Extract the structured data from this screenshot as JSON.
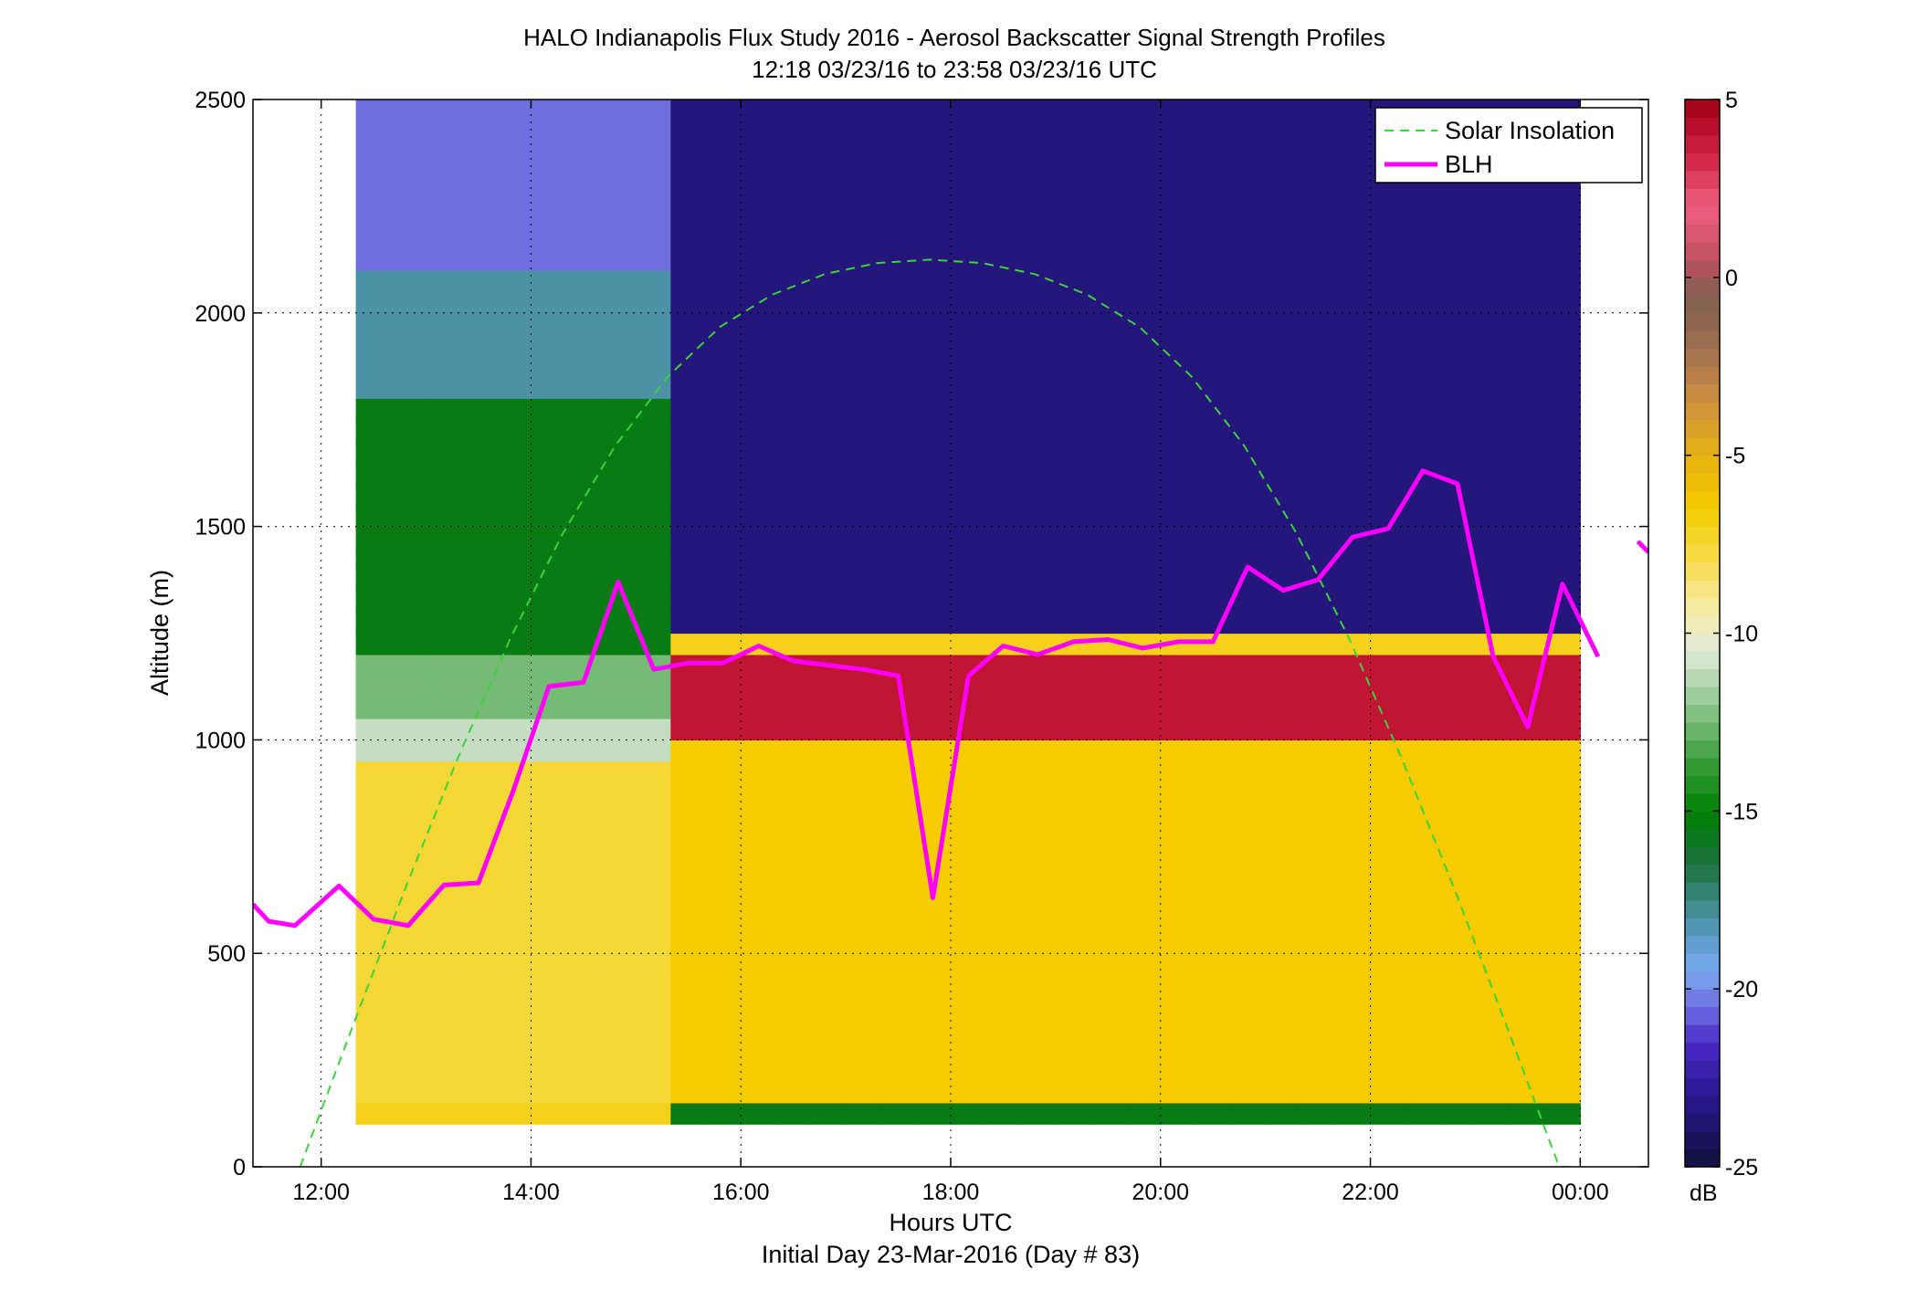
{
  "chart_data": {
    "type": "heatmap",
    "title": "HALO Indianapolis Flux Study 2016 - Aerosol Backscatter Signal Strength Profiles",
    "subtitle": "12:18 03/23/16 to 23:58 03/23/16  UTC",
    "xlabel": "Hours UTC",
    "xlabel2": "Initial Day 23-Mar-2016 (Day # 83)",
    "ylabel": "Altitude (m)",
    "xlim": [
      11.35,
      24.65
    ],
    "ylim": [
      0,
      2500
    ],
    "grid": true,
    "legend_position": "top-right",
    "x_ticks": [
      {
        "value": 12,
        "label": "12:00"
      },
      {
        "value": 14,
        "label": "14:00"
      },
      {
        "value": 16,
        "label": "16:00"
      },
      {
        "value": 18,
        "label": "18:00"
      },
      {
        "value": 20,
        "label": "20:00"
      },
      {
        "value": 22,
        "label": "22:00"
      },
      {
        "value": 24,
        "label": "00:00"
      }
    ],
    "y_ticks": [
      {
        "value": 0,
        "label": "0"
      },
      {
        "value": 500,
        "label": "500"
      },
      {
        "value": 1000,
        "label": "1000"
      },
      {
        "value": 1500,
        "label": "1500"
      },
      {
        "value": 2000,
        "label": "2000"
      },
      {
        "value": 2500,
        "label": "2500"
      }
    ],
    "colorbar": {
      "label": "dB",
      "range": [
        -25,
        5
      ],
      "ticks": [
        {
          "value": 5,
          "label": "5"
        },
        {
          "value": 0,
          "label": "0"
        },
        {
          "value": -5,
          "label": "-5"
        },
        {
          "value": -10,
          "label": "-10"
        },
        {
          "value": -15,
          "label": "-15"
        },
        {
          "value": -20,
          "label": "-20"
        },
        {
          "value": -25,
          "label": "-25"
        }
      ],
      "stops": [
        {
          "v": -25,
          "color": "#10103a"
        },
        {
          "v": -23,
          "color": "#2a1890"
        },
        {
          "v": -21.5,
          "color": "#4a2ac8"
        },
        {
          "v": -20.5,
          "color": "#6f6ee0"
        },
        {
          "v": -19.5,
          "color": "#7aa8ee"
        },
        {
          "v": -18.5,
          "color": "#5a9ac8"
        },
        {
          "v": -17.5,
          "color": "#3a8a80"
        },
        {
          "v": -16.5,
          "color": "#1a7040"
        },
        {
          "v": -15,
          "color": "#008000"
        },
        {
          "v": -13.5,
          "color": "#40a040"
        },
        {
          "v": -12,
          "color": "#90c890"
        },
        {
          "v": -10.5,
          "color": "#e0e8d8"
        },
        {
          "v": -9.5,
          "color": "#f5eeb0"
        },
        {
          "v": -8,
          "color": "#f6dc50"
        },
        {
          "v": -6.5,
          "color": "#f4cc00"
        },
        {
          "v": -5,
          "color": "#e8b010"
        },
        {
          "v": -3.5,
          "color": "#d09040"
        },
        {
          "v": -2,
          "color": "#a07050"
        },
        {
          "v": -0.5,
          "color": "#806050"
        },
        {
          "v": 0.5,
          "color": "#c05060"
        },
        {
          "v": 2,
          "color": "#f06080"
        },
        {
          "v": 3.5,
          "color": "#d02040"
        },
        {
          "v": 5,
          "color": "#a00018"
        }
      ]
    },
    "heatmap": {
      "x_start": 12.33,
      "x_end": 24.0,
      "x_bins": 35,
      "y_start": 100,
      "y_end": 2500,
      "y_bin": 50,
      "segments": [
        {
          "x_from": 12.33,
          "x_to": 15.2,
          "layers": [
            {
              "from": 100,
              "to": 150,
              "value": -7
            },
            {
              "from": 150,
              "to": 950,
              "value": -7.5
            },
            {
              "from": 950,
              "to": 1050,
              "value": -11
            },
            {
              "from": 1050,
              "to": 1200,
              "value": -12.5
            },
            {
              "from": 1200,
              "to": 1800,
              "value": -15.5
            },
            {
              "from": 1800,
              "to": 2100,
              "value": -18
            },
            {
              "from": 2100,
              "to": 2500,
              "value": -20.5
            }
          ]
        },
        {
          "x_from": 15.2,
          "x_to": 24.0,
          "layers": [
            {
              "from": 100,
              "to": 150,
              "value": -15.5
            },
            {
              "from": 150,
              "to": 1000,
              "value": -6.5
            },
            {
              "from": 1000,
              "to": 1200,
              "value": 4
            },
            {
              "from": 1200,
              "to": 1250,
              "value": -7
            },
            {
              "from": 1250,
              "to": 2500,
              "value": -23.5
            }
          ]
        }
      ]
    },
    "series": [
      {
        "name": "Solar Insolation",
        "style": "dashed",
        "color": "#3cd23c",
        "x": [
          11.8,
          12.3,
          12.8,
          13.3,
          13.8,
          14.3,
          14.8,
          15.3,
          15.8,
          16.3,
          16.8,
          17.3,
          17.8,
          18.3,
          18.8,
          19.3,
          19.8,
          20.3,
          20.8,
          21.3,
          21.8,
          22.3,
          22.8,
          23.3,
          23.8,
          23.9
        ],
        "y": [
          0,
          329,
          651,
          956,
          1236,
          1482,
          1688,
          1850,
          1967,
          2043,
          2091,
          2117,
          2125,
          2117,
          2091,
          2043,
          1967,
          1850,
          1688,
          1482,
          1236,
          956,
          651,
          329,
          0,
          0
        ]
      },
      {
        "name": "BLH",
        "style": "solid",
        "color": "#ff00ff",
        "x": [
          11.35,
          11.5,
          11.75,
          12.17,
          12.5,
          12.83,
          13.17,
          13.5,
          13.83,
          14.17,
          14.5,
          14.83,
          15.17,
          15.5,
          15.83,
          16.17,
          16.5,
          16.83,
          17.17,
          17.5,
          17.83,
          18.17,
          18.5,
          18.83,
          19.17,
          19.5,
          19.83,
          20.17,
          20.5,
          20.83,
          21.17,
          21.5,
          21.83,
          22.17,
          22.5,
          22.83,
          23.17,
          23.5,
          23.83,
          24.17
        ],
        "y": [
          615,
          575,
          565,
          658,
          580,
          565,
          660,
          665,
          880,
          1125,
          1135,
          1370,
          1165,
          1180,
          1180,
          1220,
          1185,
          1175,
          1165,
          1150,
          630,
          1150,
          1220,
          1200,
          1230,
          1235,
          1215,
          1230,
          1230,
          1405,
          1350,
          1375,
          1475,
          1495,
          1630,
          1600,
          1195,
          1030,
          1365,
          1195
        ],
        "x2": [
          24.55,
          24.65
        ],
        "y2": [
          1465,
          1440
        ]
      }
    ],
    "legend": [
      "Solar Insolation",
      "BLH"
    ]
  }
}
